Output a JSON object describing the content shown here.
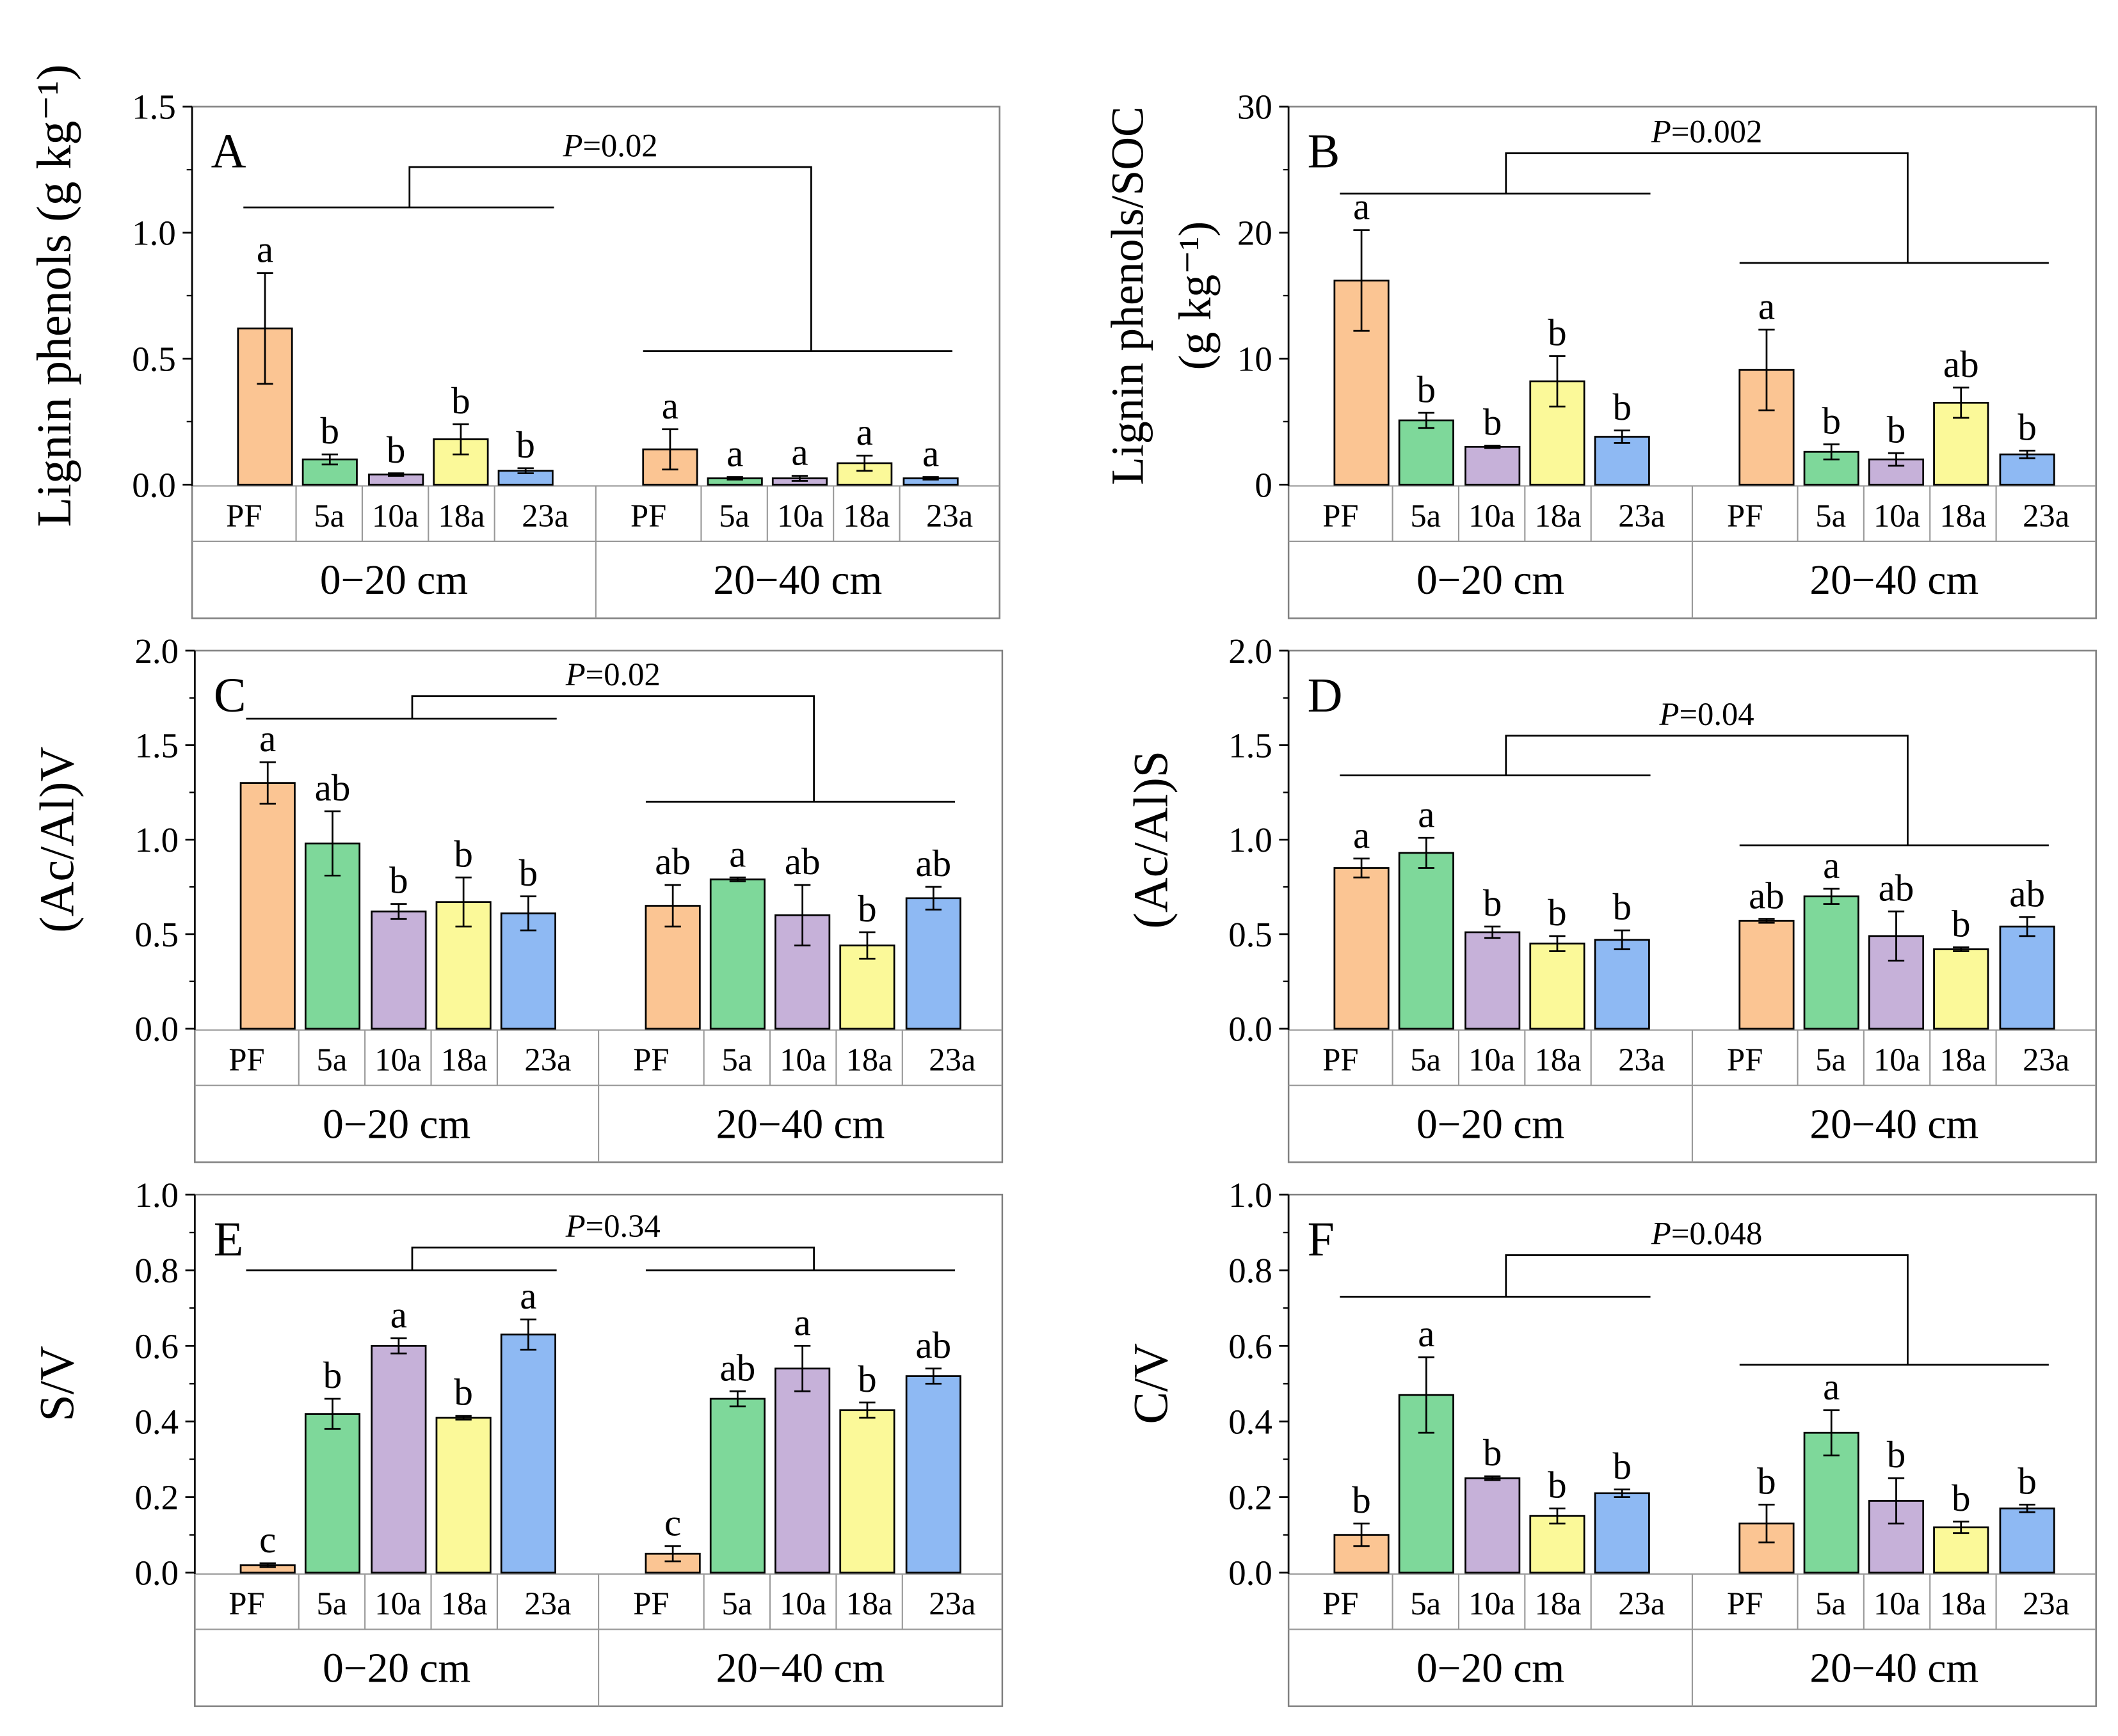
{
  "colors": {
    "PF": "#FBC593",
    "5a": "#7ED89A",
    "10a": "#C6B1D9",
    "18a": "#FBF999",
    "23a": "#8EB9F3",
    "axis": "#000000",
    "frame": "#808080"
  },
  "chart_data": [
    {
      "panel": "A",
      "type": "bar",
      "ylabel": "Lignin phenols (g kg⁻¹)",
      "ylim": [
        0,
        1.5
      ],
      "yticks": [
        "0.0",
        "0.5",
        "1.0",
        "1.5"
      ],
      "categories": [
        "PF",
        "5a",
        "10a",
        "18a",
        "23a"
      ],
      "groups": [
        {
          "name": "0−20 cm",
          "values": [
            0.62,
            0.1,
            0.04,
            0.18,
            0.055
          ],
          "errors": [
            0.22,
            0.02,
            0.005,
            0.06,
            0.01
          ],
          "letters": [
            "a",
            "b",
            "b",
            "b",
            "b"
          ]
        },
        {
          "name": "20−40 cm",
          "values": [
            0.14,
            0.025,
            0.025,
            0.085,
            0.025
          ],
          "errors": [
            0.08,
            0.005,
            0.01,
            0.03,
            0.005
          ],
          "letters": [
            "a",
            "a",
            "a",
            "a",
            "a"
          ]
        }
      ],
      "p_label": "P",
      "p_value": "=0.02",
      "bracket": {
        "top": 1.26,
        "g1": 1.1,
        "g2": 0.53
      }
    },
    {
      "panel": "B",
      "type": "bar",
      "ylabel_lines": [
        "Lignin phenols/SOC",
        "(g kg⁻¹)"
      ],
      "ylim": [
        0,
        30
      ],
      "yticks": [
        "0",
        "10",
        "20",
        "30"
      ],
      "categories": [
        "PF",
        "5a",
        "10a",
        "18a",
        "23a"
      ],
      "groups": [
        {
          "name": "0−20 cm",
          "values": [
            16.2,
            5.1,
            3.0,
            8.2,
            3.8
          ],
          "errors": [
            4.0,
            0.6,
            0.1,
            2.0,
            0.5
          ],
          "letters": [
            "a",
            "b",
            "b",
            "b",
            "b"
          ]
        },
        {
          "name": "20−40 cm",
          "values": [
            9.1,
            2.6,
            2.0,
            6.5,
            2.4
          ],
          "errors": [
            3.2,
            0.6,
            0.5,
            1.2,
            0.3
          ],
          "letters": [
            "a",
            "b",
            "b",
            "ab",
            "b"
          ]
        }
      ],
      "p_label": "P",
      "p_value": "=0.002",
      "bracket": {
        "top": 26.3,
        "g1": 23.1,
        "g2": 17.6
      }
    },
    {
      "panel": "C",
      "type": "bar",
      "ylabel": "(Ac/Al)V",
      "ylim": [
        0,
        2.0
      ],
      "yticks": [
        "0.0",
        "0.5",
        "1.0",
        "1.5",
        "2.0"
      ],
      "categories": [
        "PF",
        "5a",
        "10a",
        "18a",
        "23a"
      ],
      "groups": [
        {
          "name": "0−20 cm",
          "values": [
            1.3,
            0.98,
            0.62,
            0.67,
            0.61
          ],
          "errors": [
            0.11,
            0.17,
            0.04,
            0.13,
            0.09
          ],
          "letters": [
            "a",
            "ab",
            "b",
            "b",
            "b"
          ]
        },
        {
          "name": "20−40 cm",
          "values": [
            0.65,
            0.79,
            0.6,
            0.44,
            0.69
          ],
          "errors": [
            0.11,
            0.01,
            0.16,
            0.07,
            0.06
          ],
          "letters": [
            "ab",
            "a",
            "ab",
            "b",
            "ab"
          ]
        }
      ],
      "p_label": "P",
      "p_value": "=0.02",
      "bracket": {
        "top": 1.76,
        "g1": 1.64,
        "g2": 1.2
      }
    },
    {
      "panel": "D",
      "type": "bar",
      "ylabel": "(Ac/Al)S",
      "ylim": [
        0,
        2.0
      ],
      "yticks": [
        "0.0",
        "0.5",
        "1.0",
        "1.5",
        "2.0"
      ],
      "categories": [
        "PF",
        "5a",
        "10a",
        "18a",
        "23a"
      ],
      "groups": [
        {
          "name": "0−20 cm",
          "values": [
            0.85,
            0.93,
            0.51,
            0.45,
            0.47
          ],
          "errors": [
            0.05,
            0.08,
            0.03,
            0.04,
            0.05
          ],
          "letters": [
            "a",
            "a",
            "b",
            "b",
            "b"
          ]
        },
        {
          "name": "20−40 cm",
          "values": [
            0.57,
            0.7,
            0.49,
            0.42,
            0.54
          ],
          "errors": [
            0.01,
            0.04,
            0.13,
            0.01,
            0.05
          ],
          "letters": [
            "ab",
            "a",
            "ab",
            "b",
            "ab"
          ]
        }
      ],
      "p_label": "P",
      "p_value": "=0.04",
      "bracket": {
        "top": 1.55,
        "g1": 1.34,
        "g2": 0.97
      }
    },
    {
      "panel": "E",
      "type": "bar",
      "ylabel": "S/V",
      "ylim": [
        0,
        1.0
      ],
      "yticks": [
        "0.0",
        "0.2",
        "0.4",
        "0.6",
        "0.8",
        "1.0"
      ],
      "categories": [
        "PF",
        "5a",
        "10a",
        "18a",
        "23a"
      ],
      "groups": [
        {
          "name": "0−20 cm",
          "values": [
            0.02,
            0.42,
            0.6,
            0.41,
            0.63
          ],
          "errors": [
            0.005,
            0.04,
            0.02,
            0.005,
            0.04
          ],
          "letters": [
            "c",
            "b",
            "a",
            "b",
            "a"
          ]
        },
        {
          "name": "20−40 cm",
          "values": [
            0.05,
            0.46,
            0.54,
            0.43,
            0.52
          ],
          "errors": [
            0.02,
            0.02,
            0.06,
            0.02,
            0.02
          ],
          "letters": [
            "c",
            "ab",
            "a",
            "b",
            "ab"
          ]
        }
      ],
      "p_label": "P",
      "p_value": "=0.34",
      "bracket": {
        "top": 0.86,
        "g1": 0.8,
        "g2": 0.8
      }
    },
    {
      "panel": "F",
      "type": "bar",
      "ylabel": "C/V",
      "ylim": [
        0,
        1.0
      ],
      "yticks": [
        "0.0",
        "0.2",
        "0.4",
        "0.6",
        "0.8",
        "1.0"
      ],
      "categories": [
        "PF",
        "5a",
        "10a",
        "18a",
        "23a"
      ],
      "groups": [
        {
          "name": "0−20 cm",
          "values": [
            0.1,
            0.47,
            0.25,
            0.15,
            0.21
          ],
          "errors": [
            0.03,
            0.1,
            0.005,
            0.02,
            0.01
          ],
          "letters": [
            "b",
            "a",
            "b",
            "b",
            "b"
          ]
        },
        {
          "name": "20−40 cm",
          "values": [
            0.13,
            0.37,
            0.19,
            0.12,
            0.17
          ],
          "errors": [
            0.05,
            0.06,
            0.06,
            0.015,
            0.01
          ],
          "letters": [
            "b",
            "a",
            "b",
            "b",
            "b"
          ]
        }
      ],
      "p_label": "P",
      "p_value": "=0.048",
      "bracket": {
        "top": 0.84,
        "g1": 0.73,
        "g2": 0.55
      }
    }
  ]
}
